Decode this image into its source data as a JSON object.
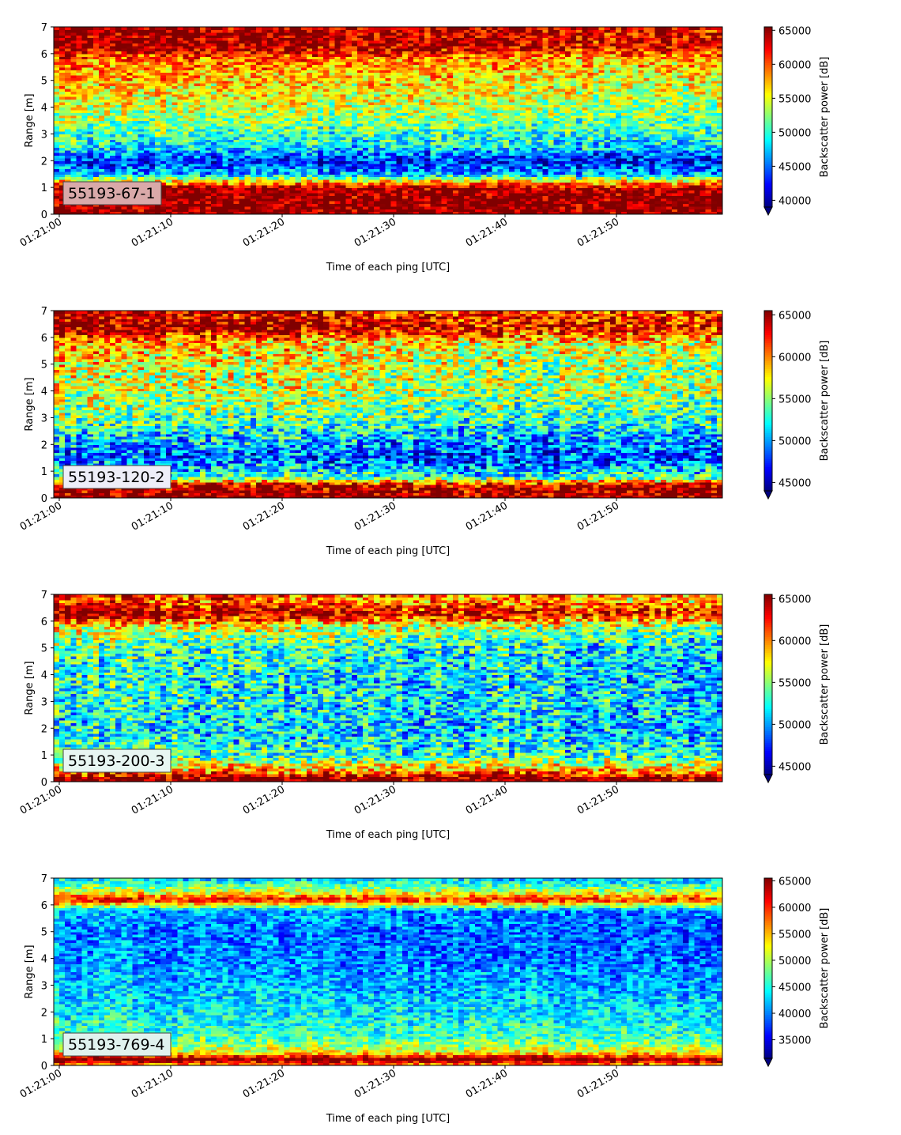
{
  "chart_data": [
    {
      "type": "heatmap",
      "panel_label": "55193-67-1",
      "xlabel": "Time of each ping [UTC]",
      "ylabel": "Range [m]",
      "x_tick_labels": [
        "01:21:00",
        "01:21:10",
        "01:21:20",
        "01:21:30",
        "01:21:40",
        "01:21:50"
      ],
      "x_start": "01:21:00",
      "x_end": "01:22:00",
      "ylim": [
        0,
        7
      ],
      "y_ticks": [
        0,
        1,
        2,
        3,
        4,
        5,
        6,
        7
      ],
      "colormap": "jet",
      "colorbar_label": "Backscatter power [dB]",
      "clim": [
        39000,
        65500
      ],
      "colorbar_ticks": [
        40000,
        45000,
        50000,
        55000,
        60000,
        65000
      ],
      "colorbar_extend": "min",
      "label_box_color": "#d9a9a9",
      "profile": [
        {
          "range": 0.2,
          "value": 65500
        },
        {
          "range": 0.6,
          "value": 65500
        },
        {
          "range": 1.0,
          "value": 65000
        },
        {
          "range": 1.2,
          "value": 58000
        },
        {
          "range": 1.5,
          "value": 47500
        },
        {
          "range": 2.0,
          "value": 43000
        },
        {
          "range": 2.5,
          "value": 49000
        },
        {
          "range": 3.0,
          "value": 51000
        },
        {
          "range": 4.0,
          "value": 55000
        },
        {
          "range": 5.0,
          "value": 57500
        },
        {
          "range": 5.8,
          "value": 60000
        },
        {
          "range": 6.3,
          "value": 65500
        },
        {
          "range": 7.0,
          "value": 65500
        }
      ],
      "trend_bottom": 0,
      "trend_top": -3500
    },
    {
      "type": "heatmap",
      "panel_label": "55193-120-2",
      "xlabel": "Time of each ping [UTC]",
      "ylabel": "Range [m]",
      "x_tick_labels": [
        "01:21:00",
        "01:21:10",
        "01:21:20",
        "01:21:30",
        "01:21:40",
        "01:21:50"
      ],
      "x_start": "01:21:00",
      "x_end": "01:22:00",
      "ylim": [
        0,
        7
      ],
      "y_ticks": [
        0,
        1,
        2,
        3,
        4,
        5,
        6,
        7
      ],
      "colormap": "jet",
      "colorbar_label": "Backscatter power [dB]",
      "clim": [
        44000,
        65500
      ],
      "colorbar_ticks": [
        45000,
        50000,
        55000,
        60000,
        65000
      ],
      "colorbar_extend": "min",
      "label_box_color": "#eeeef8",
      "profile": [
        {
          "range": 0.2,
          "value": 65500
        },
        {
          "range": 0.5,
          "value": 64000
        },
        {
          "range": 0.8,
          "value": 53000
        },
        {
          "range": 1.5,
          "value": 48500
        },
        {
          "range": 2.0,
          "value": 50500
        },
        {
          "range": 3.0,
          "value": 54500
        },
        {
          "range": 4.0,
          "value": 57000
        },
        {
          "range": 5.0,
          "value": 57500
        },
        {
          "range": 5.8,
          "value": 59500
        },
        {
          "range": 6.3,
          "value": 65500
        },
        {
          "range": 7.0,
          "value": 64500
        }
      ],
      "trend_bottom": 0,
      "trend_top": -3500
    },
    {
      "type": "heatmap",
      "panel_label": "55193-200-3",
      "xlabel": "Time of each ping [UTC]",
      "ylabel": "Range [m]",
      "x_tick_labels": [
        "01:21:00",
        "01:21:10",
        "01:21:20",
        "01:21:30",
        "01:21:40",
        "01:21:50"
      ],
      "x_start": "01:21:00",
      "x_end": "01:22:00",
      "ylim": [
        0,
        7
      ],
      "y_ticks": [
        0,
        1,
        2,
        3,
        4,
        5,
        6,
        7
      ],
      "colormap": "jet",
      "colorbar_label": "Backscatter power [dB]",
      "clim": [
        44000,
        65500
      ],
      "colorbar_ticks": [
        45000,
        50000,
        55000,
        60000,
        65000
      ],
      "colorbar_extend": "min",
      "label_box_color": "#e8f6f2",
      "profile": [
        {
          "range": 0.15,
          "value": 65500
        },
        {
          "range": 0.4,
          "value": 60000
        },
        {
          "range": 1.0,
          "value": 53000
        },
        {
          "range": 2.0,
          "value": 51500
        },
        {
          "range": 3.0,
          "value": 52500
        },
        {
          "range": 4.0,
          "value": 52500
        },
        {
          "range": 5.0,
          "value": 53500
        },
        {
          "range": 5.8,
          "value": 57500
        },
        {
          "range": 6.3,
          "value": 65500
        },
        {
          "range": 6.8,
          "value": 61000
        },
        {
          "range": 7.0,
          "value": 62000
        }
      ],
      "trend_bottom": 0,
      "trend_top": -3000
    },
    {
      "type": "heatmap",
      "panel_label": "55193-769-4",
      "xlabel": "Time of each ping [UTC]",
      "ylabel": "Range [m]",
      "x_tick_labels": [
        "01:21:00",
        "01:21:10",
        "01:21:20",
        "01:21:30",
        "01:21:40",
        "01:21:50"
      ],
      "x_start": "01:21:00",
      "x_end": "01:22:00",
      "ylim": [
        0,
        7
      ],
      "y_ticks": [
        0,
        1,
        2,
        3,
        4,
        5,
        6,
        7
      ],
      "colormap": "jet",
      "colorbar_label": "Backscatter power [dB]",
      "clim": [
        31500,
        65500
      ],
      "colorbar_ticks": [
        35000,
        40000,
        45000,
        50000,
        55000,
        60000,
        65000
      ],
      "colorbar_extend": "min",
      "label_box_color": "#e0f2ee",
      "profile": [
        {
          "range": 0.05,
          "value": 58000
        },
        {
          "range": 0.25,
          "value": 65500
        },
        {
          "range": 0.5,
          "value": 52500
        },
        {
          "range": 1.0,
          "value": 47000
        },
        {
          "range": 2.0,
          "value": 44000
        },
        {
          "range": 3.0,
          "value": 42000
        },
        {
          "range": 4.0,
          "value": 40500
        },
        {
          "range": 5.0,
          "value": 40000
        },
        {
          "range": 5.8,
          "value": 41500
        },
        {
          "range": 6.2,
          "value": 62000
        },
        {
          "range": 6.5,
          "value": 52000
        },
        {
          "range": 7.0,
          "value": 43000
        }
      ],
      "trend_bottom": 0,
      "trend_top": -1500
    }
  ]
}
